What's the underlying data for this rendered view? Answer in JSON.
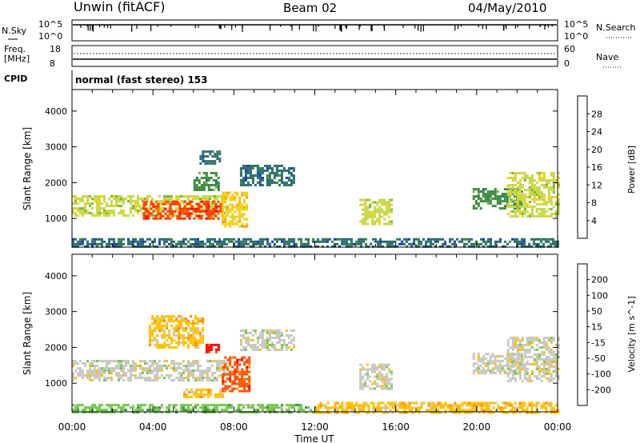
{
  "header": {
    "station": "Unwin (fitACF)",
    "beam": "Beam 02",
    "date": "04/May/2010"
  },
  "strip_panels": {
    "nsky_label": "N.Sky",
    "nsearch_label": "N.Search",
    "freq_label_line1": "Freq.",
    "freq_label_line2": "[MHz]",
    "nave_label": "Nave",
    "cpid_label": "CPID",
    "noise_ticks": [
      "10^5",
      "10^0"
    ],
    "freq_ticks": [
      "18",
      "8"
    ],
    "nave_ticks": [
      "60",
      "0"
    ],
    "cpid_text": "normal (fast stereo) 153"
  },
  "colorbars": {
    "power": {
      "label": "Power [dB]",
      "ticks": [
        "28",
        "24",
        "20",
        "16",
        "12",
        "8",
        "4"
      ],
      "colors": [
        "#0000ff",
        "#1e3cb4",
        "#2d6e6e",
        "#3c8c3c",
        "#7ab838",
        "#c8d848",
        "#ffcc00",
        "#ffa000",
        "#ff6e00",
        "#ff3c00",
        "#ff0000"
      ]
    },
    "velocity": {
      "label": "Velocity [m s^-1]",
      "ticks": [
        "200",
        "100",
        "50",
        "15",
        "-15",
        "-50",
        "-100",
        "-200"
      ],
      "colors": [
        "#1e3cc8",
        "#2a6090",
        "#3c9c3c",
        "#78c850",
        "#c8c8c0",
        "#ffc000",
        "#ff8c00",
        "#ff5000",
        "#ff0000"
      ]
    }
  },
  "axes": {
    "ylabel": "Slant Range [km]",
    "xlabel": "Time UT",
    "yticks": [
      1000,
      2000,
      3000,
      4000
    ],
    "xticks": [
      "00:00",
      "04:00",
      "08:00",
      "12:00",
      "16:00",
      "20:00",
      "00:00"
    ]
  },
  "chart_data": [
    {
      "type": "heatmap",
      "title": "Power [dB]",
      "xlabel": "",
      "ylabel": "Slant Range [km]",
      "xlim": [
        0,
        24
      ],
      "ylim": [
        200,
        4600
      ],
      "x_unit": "hours UT",
      "scale": [
        0,
        30
      ],
      "regions": [
        {
          "x": [
            0.0,
            7.6
          ],
          "y": [
            1050,
            1650
          ],
          "value": 14
        },
        {
          "x": [
            3.5,
            7.4
          ],
          "y": [
            1000,
            1500
          ],
          "value": 26
        },
        {
          "x": [
            7.4,
            8.7
          ],
          "y": [
            800,
            1750
          ],
          "value": 18
        },
        {
          "x": [
            6.0,
            7.2
          ],
          "y": [
            1800,
            2300
          ],
          "value": 10
        },
        {
          "x": [
            6.3,
            7.3
          ],
          "y": [
            2500,
            2900
          ],
          "value": 8
        },
        {
          "x": [
            8.3,
            11.0
          ],
          "y": [
            1900,
            2500
          ],
          "value": 6
        },
        {
          "x": [
            14.2,
            15.8
          ],
          "y": [
            850,
            1550
          ],
          "value": 16
        },
        {
          "x": [
            19.8,
            22.2
          ],
          "y": [
            1250,
            1850
          ],
          "value": 10
        },
        {
          "x": [
            21.5,
            24.0
          ],
          "y": [
            1050,
            2300
          ],
          "value": 14
        },
        {
          "x": [
            0.0,
            24.0
          ],
          "y": [
            200,
            450
          ],
          "value": 6
        }
      ]
    },
    {
      "type": "heatmap",
      "title": "Velocity [m s^-1]",
      "xlabel": "Time UT",
      "ylabel": "Slant Range [km]",
      "xlim": [
        0,
        24
      ],
      "ylim": [
        200,
        4600
      ],
      "x_unit": "hours UT",
      "scale": [
        -250,
        250
      ],
      "regions": [
        {
          "x": [
            0.0,
            7.6
          ],
          "y": [
            1050,
            1650
          ],
          "value": 0
        },
        {
          "x": [
            7.4,
            8.8
          ],
          "y": [
            800,
            1750
          ],
          "value": -180
        },
        {
          "x": [
            5.5,
            7.4
          ],
          "y": [
            600,
            850
          ],
          "value": -70
        },
        {
          "x": [
            6.6,
            7.2
          ],
          "y": [
            1850,
            2100
          ],
          "value": -220
        },
        {
          "x": [
            3.8,
            6.5
          ],
          "y": [
            2000,
            2900
          ],
          "value": -40
        },
        {
          "x": [
            8.3,
            11.0
          ],
          "y": [
            1900,
            2500
          ],
          "value": 0
        },
        {
          "x": [
            14.2,
            15.8
          ],
          "y": [
            850,
            1550
          ],
          "value": 0
        },
        {
          "x": [
            19.8,
            22.2
          ],
          "y": [
            1250,
            1850
          ],
          "value": 0
        },
        {
          "x": [
            21.5,
            24.0
          ],
          "y": [
            1050,
            2300
          ],
          "value": 0
        },
        {
          "x": [
            0.0,
            12.0
          ],
          "y": [
            200,
            420
          ],
          "value": 40
        },
        {
          "x": [
            12.0,
            24.0
          ],
          "y": [
            200,
            480
          ],
          "value": -40
        }
      ]
    }
  ]
}
